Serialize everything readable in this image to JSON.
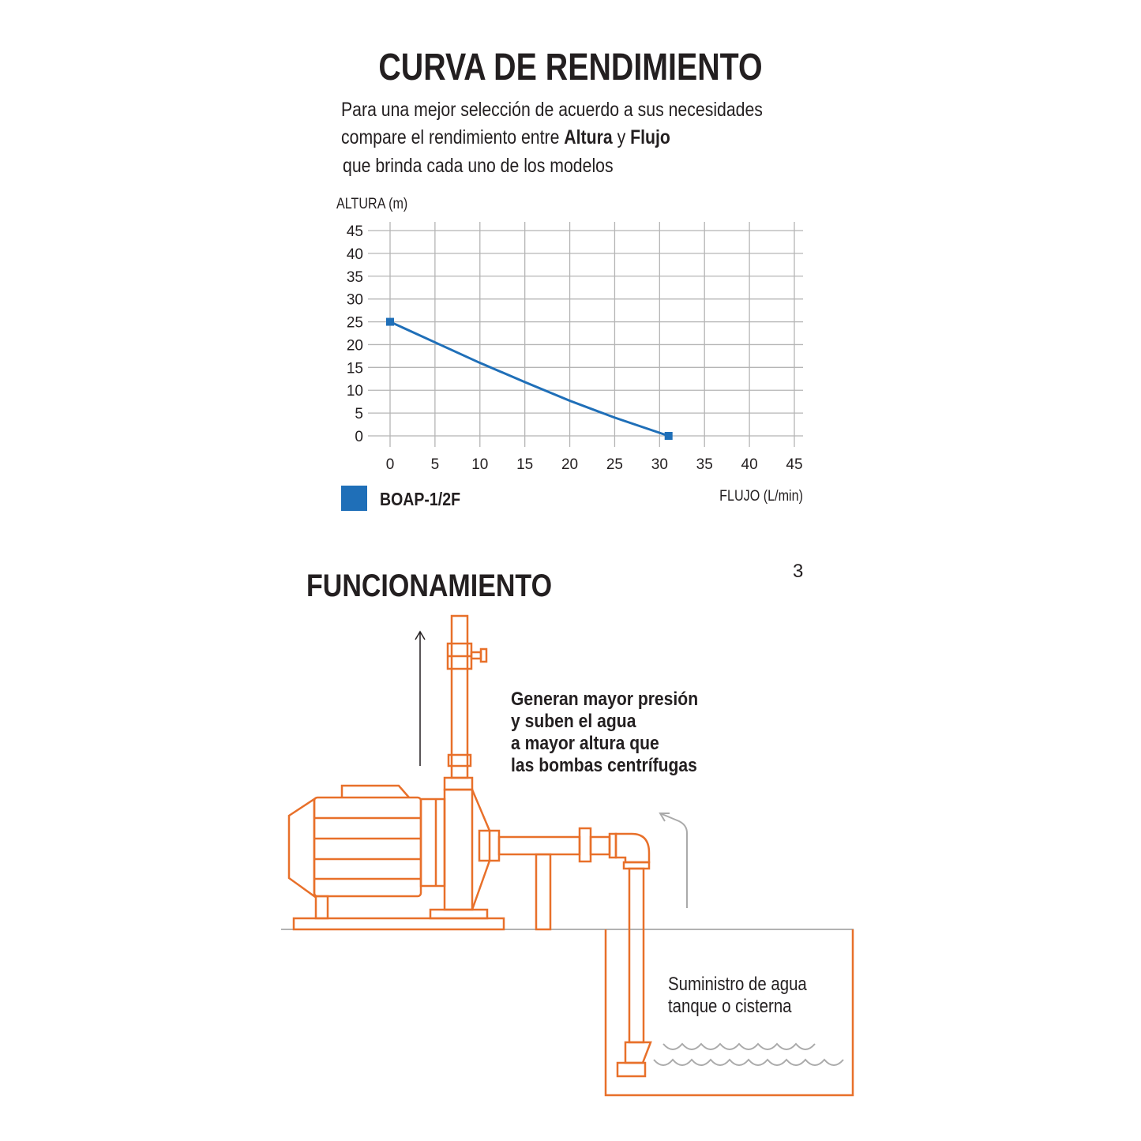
{
  "header": {
    "title": "CURVA DE RENDIMIENTO",
    "intro_line1": "Para una mejor selección de acuerdo a sus necesidades",
    "intro_line2_pre": "compare el rendimiento entre ",
    "intro_line2_b1": "Altura",
    "intro_line2_mid": " y ",
    "intro_line2_b2": "Flujo",
    "intro_line3": "que brinda cada uno de los modelos"
  },
  "chart_data": {
    "type": "line",
    "ylabel": "ALTURA  (m)",
    "xlabel": "FLUJO (L/min)",
    "xlim": [
      0,
      45
    ],
    "ylim": [
      0,
      45
    ],
    "xticks": [
      "0",
      "5",
      "10",
      "15",
      "20",
      "25",
      "30",
      "35",
      "40",
      "45"
    ],
    "yticks": [
      "0",
      "5",
      "10",
      "15",
      "20",
      "25",
      "30",
      "35",
      "40",
      "45"
    ],
    "grid": true,
    "legend_placement": "bottom-left",
    "series": [
      {
        "name": "BOAP-1/2F",
        "color": "#1f6fb8",
        "x": [
          0,
          5,
          10,
          15,
          20,
          25,
          31
        ],
        "y": [
          25,
          20.5,
          16,
          11.8,
          7.7,
          4,
          0
        ]
      }
    ]
  },
  "section": {
    "title": "FUNCIONAMIENTO",
    "page_number": "3",
    "note_lines": [
      "Generan mayor presión",
      "y suben el agua",
      "a mayor altura que",
      "las bombas centrífugas"
    ],
    "supply_lines": [
      "Suministro de agua",
      "tanque o cisterna"
    ],
    "diagram_color": "#e8702a"
  }
}
